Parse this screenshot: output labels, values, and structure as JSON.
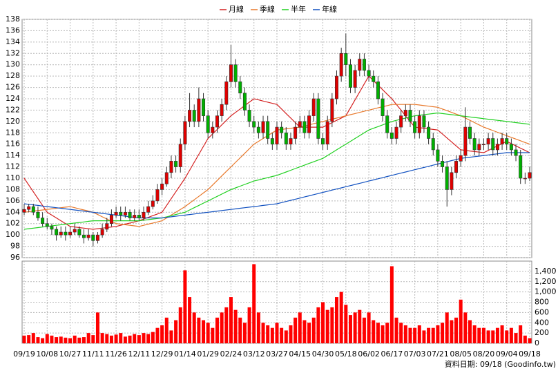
{
  "chart_data": {
    "type": "candlestick",
    "categories": [
      "09/19",
      null,
      null,
      null,
      null,
      "10/08",
      null,
      null,
      null,
      null,
      "10/27",
      null,
      null,
      null,
      null,
      "11/11",
      null,
      null,
      null,
      null,
      "11/26",
      null,
      null,
      null,
      null,
      "12/11",
      null,
      null,
      null,
      null,
      "12/29",
      null,
      null,
      null,
      null,
      "01/14",
      null,
      null,
      null,
      null,
      "01/29",
      null,
      null,
      null,
      null,
      "02/24",
      null,
      null,
      null,
      null,
      "03/12",
      null,
      null,
      null,
      null,
      "03/27",
      null,
      null,
      null,
      null,
      "04/15",
      null,
      null,
      null,
      null,
      "04/30",
      null,
      null,
      null,
      null,
      "05/18",
      null,
      null,
      null,
      null,
      "06/02",
      null,
      null,
      null,
      null,
      "06/17",
      null,
      null,
      null,
      null,
      "07/03",
      null,
      null,
      null,
      null,
      "07/21",
      null,
      null,
      null,
      null,
      "08/05",
      null,
      null,
      null,
      null,
      "08/20",
      null,
      null,
      null,
      null,
      "09/04",
      null,
      null,
      null,
      null,
      "09/18"
    ],
    "open": [
      104,
      104.5,
      105,
      104,
      103,
      102,
      101.5,
      101,
      100,
      100.5,
      100,
      100.5,
      101,
      100,
      99.5,
      100,
      99,
      100,
      101,
      102,
      103.5,
      104,
      103.5,
      104,
      103,
      103.5,
      103,
      104,
      105,
      106,
      108,
      109,
      111,
      113,
      112,
      116,
      120,
      122,
      120,
      124,
      121,
      118,
      119,
      121,
      123,
      127,
      130,
      127,
      125,
      122,
      120,
      119,
      118,
      120,
      117,
      116,
      119,
      118,
      116,
      117,
      119,
      120,
      118,
      121,
      124,
      117,
      116,
      120,
      124,
      128,
      132,
      130,
      126,
      129,
      131,
      129,
      128,
      127,
      124,
      121,
      118,
      117,
      119,
      121,
      122,
      120,
      118,
      121,
      119,
      117,
      115,
      113,
      112,
      108,
      111,
      113,
      114,
      119,
      117,
      115,
      116,
      116,
      117,
      115,
      116,
      117,
      116,
      115,
      114,
      110,
      110
    ],
    "high": [
      105.5,
      105.5,
      105.5,
      105,
      104,
      103,
      102,
      101.5,
      101.5,
      101.5,
      101.5,
      102,
      101.5,
      101,
      101,
      100.5,
      100.5,
      102,
      103,
      104.5,
      105,
      105,
      105,
      104.5,
      104.5,
      104.5,
      105,
      106,
      107,
      109,
      110,
      112,
      114,
      114,
      117,
      121,
      125,
      123,
      126,
      125,
      122,
      120,
      122,
      124,
      128,
      133.5,
      131,
      128,
      126,
      123,
      121,
      120,
      121,
      121,
      118,
      120,
      120,
      119,
      118,
      120,
      121,
      121,
      122,
      125,
      125,
      118,
      121,
      125,
      129,
      133,
      135.5,
      131,
      130,
      132,
      132,
      130,
      129,
      128,
      125,
      122,
      119,
      120,
      122,
      123,
      123,
      121,
      122,
      122,
      120,
      118,
      116,
      114,
      113,
      112,
      114,
      115,
      122.5,
      120,
      118,
      117,
      117,
      118,
      118,
      117,
      118,
      118,
      117,
      116,
      115,
      111,
      112
    ],
    "low": [
      103.5,
      104,
      103.5,
      102.5,
      101.5,
      101,
      100,
      99,
      99.5,
      99,
      99.5,
      100,
      99.5,
      98.5,
      99,
      98,
      98.5,
      99.5,
      100.5,
      101.5,
      103,
      102.5,
      103,
      102.5,
      102.5,
      102.5,
      102.5,
      103.5,
      104.5,
      105.5,
      107,
      108.5,
      110,
      111,
      111,
      115,
      119,
      119,
      119,
      120,
      117,
      117,
      118,
      120,
      122,
      126,
      126,
      124,
      121,
      119,
      118,
      117,
      117,
      116,
      115,
      115,
      117,
      115,
      115,
      116,
      118,
      117,
      117,
      120,
      116,
      115,
      115,
      119,
      123,
      127,
      128,
      125,
      125,
      128,
      128,
      127,
      126,
      123,
      120,
      117,
      116,
      116,
      118,
      120,
      119,
      117,
      117,
      118,
      116,
      114,
      112,
      111,
      105,
      107,
      110,
      112,
      113,
      116,
      114,
      114,
      115,
      115,
      114,
      114,
      115,
      115,
      114,
      113,
      109,
      109,
      109.5
    ],
    "close": [
      104.5,
      105,
      104,
      103,
      102,
      101.5,
      101,
      100,
      100.5,
      100,
      100.5,
      101,
      100,
      99.5,
      100,
      99,
      100,
      101,
      102,
      103.5,
      104,
      103.5,
      104,
      103,
      103.5,
      103,
      104,
      105,
      106,
      108,
      109,
      111,
      113,
      112,
      116,
      120,
      122,
      120,
      124,
      121,
      118,
      119,
      121,
      123,
      127,
      130,
      127,
      125,
      122,
      120,
      119,
      118,
      120,
      117,
      116,
      119,
      118,
      116,
      117,
      119,
      120,
      118,
      121,
      124,
      117,
      116,
      120,
      124,
      128,
      132,
      130,
      126,
      129,
      131,
      129,
      128,
      127,
      124,
      121,
      118,
      117,
      119,
      121,
      122,
      120,
      118,
      121,
      119,
      117,
      115,
      113,
      112,
      108,
      111,
      113,
      114,
      119,
      117,
      115,
      116,
      116,
      117,
      115,
      116,
      117,
      116,
      115,
      114,
      110,
      110,
      111
    ],
    "volume": [
      150,
      160,
      200,
      120,
      100,
      180,
      150,
      120,
      130,
      110,
      100,
      150,
      110,
      120,
      200,
      160,
      600,
      200,
      180,
      150,
      170,
      200,
      130,
      150,
      180,
      160,
      200,
      180,
      220,
      300,
      350,
      500,
      250,
      450,
      700,
      1420,
      900,
      600,
      500,
      450,
      400,
      300,
      500,
      600,
      700,
      900,
      650,
      500,
      400,
      700,
      1540,
      600,
      400,
      350,
      300,
      400,
      300,
      250,
      350,
      500,
      600,
      450,
      400,
      500,
      700,
      800,
      650,
      700,
      900,
      1000,
      750,
      550,
      600,
      650,
      500,
      600,
      450,
      400,
      350,
      400,
      1500,
      500,
      400,
      350,
      300,
      300,
      350,
      250,
      300,
      300,
      350,
      400,
      600,
      450,
      500,
      850,
      600,
      450,
      350,
      300,
      300,
      250,
      250,
      300,
      350,
      250,
      300,
      200,
      350,
      150,
      100
    ],
    "up_color": "#e00000",
    "down_color": "#00b000",
    "volume_color": "#ff0000",
    "series": [
      {
        "name": "月線",
        "color": "#d42020",
        "values": [
          110,
          108.8,
          107.6,
          106.4,
          105.2,
          104,
          103.5,
          103,
          102.5,
          102,
          101.5,
          101.4,
          101.3,
          101.2,
          101.1,
          101,
          101.1,
          101.2,
          101.3,
          101.4,
          101.5,
          101.7,
          101.9,
          102.1,
          102.3,
          102.5,
          102.8,
          103.1,
          103.4,
          103.7,
          104,
          105.2,
          106.4,
          107.6,
          108.8,
          110,
          111.4,
          112.8,
          114.2,
          115.6,
          117,
          117.8,
          118.6,
          119.4,
          120.2,
          121,
          121.6,
          122.2,
          122.8,
          123.4,
          124,
          123.8,
          123.6,
          123.4,
          123.2,
          123,
          122.2,
          121.4,
          120.6,
          119.8,
          119,
          119,
          119,
          119,
          119,
          119,
          119.4,
          119.8,
          120.2,
          120.6,
          121,
          122.4,
          123.8,
          125.2,
          126.6,
          128,
          127.2,
          126.4,
          125.6,
          124.8,
          124,
          123,
          122,
          121,
          120,
          119,
          118.9,
          118.8,
          118.7,
          118.6,
          118.5,
          117.8,
          117.1,
          116.4,
          115.7,
          115,
          114.9,
          114.8,
          114.7,
          114.6,
          114.5,
          114.9,
          115.3,
          115.7,
          116.1,
          116.5,
          116.1,
          115.7,
          115.3,
          114.9,
          114.5
        ]
      },
      {
        "name": "季線",
        "color": "#e8782a",
        "values": [
          104,
          104.1,
          104.2,
          104.3,
          104.4,
          104.5,
          104.6,
          104.7,
          104.8,
          104.9,
          105,
          104.8,
          104.6,
          104.4,
          104.2,
          104,
          103.6,
          103.2,
          102.8,
          102.4,
          102,
          101.9,
          101.8,
          101.7,
          101.6,
          101.5,
          101.7,
          101.9,
          102.1,
          102.3,
          102.5,
          103,
          103.5,
          104,
          104.5,
          105,
          105.6,
          106.2,
          106.8,
          107.4,
          108,
          108.8,
          109.6,
          110.4,
          111.2,
          112,
          112.8,
          113.6,
          114.4,
          115.2,
          116,
          116.5,
          117,
          117.5,
          118,
          118.5,
          118.6,
          118.7,
          118.8,
          118.9,
          119,
          119.2,
          119.4,
          119.6,
          119.8,
          120,
          120.2,
          120.4,
          120.6,
          120.8,
          121,
          121.2,
          121.4,
          121.6,
          121.8,
          122,
          122.2,
          122.4,
          122.6,
          122.8,
          123,
          123,
          123,
          123,
          123,
          123,
          122.9,
          122.8,
          122.7,
          122.6,
          122.5,
          122.2,
          121.9,
          121.6,
          121.3,
          121,
          120.6,
          120.2,
          119.8,
          119.4,
          119,
          118.7,
          118.4,
          118.1,
          117.8,
          117.5,
          117.2,
          116.9,
          116.6,
          116.3,
          116
        ]
      },
      {
        "name": "半年",
        "color": "#20d020",
        "values": [
          101,
          101.1,
          101.2,
          101.3,
          101.4,
          101.5,
          101.6,
          101.7,
          101.8,
          101.9,
          102,
          102.1,
          102.2,
          102.3,
          102.4,
          102.5,
          102.5,
          102.5,
          102.5,
          102.5,
          102.5,
          102.5,
          102.5,
          102.5,
          102.5,
          102.5,
          102.6,
          102.7,
          102.8,
          102.9,
          103,
          103.2,
          103.4,
          103.6,
          103.8,
          104,
          104.4,
          104.8,
          105.2,
          105.6,
          106,
          106.4,
          106.8,
          107.2,
          107.6,
          108,
          108.3,
          108.6,
          108.9,
          109.2,
          109.5,
          109.7,
          109.9,
          110.1,
          110.3,
          110.5,
          110.8,
          111.1,
          111.4,
          111.7,
          112,
          112.3,
          112.6,
          112.9,
          113.2,
          113.5,
          114,
          114.5,
          115,
          115.5,
          116,
          116.5,
          117,
          117.5,
          118,
          118.5,
          118.8,
          119.1,
          119.4,
          119.7,
          120,
          120.2,
          120.4,
          120.6,
          120.8,
          121,
          121.1,
          121.2,
          121.3,
          121.4,
          121.5,
          121.4,
          121.3,
          121.2,
          121.1,
          121,
          120.9,
          120.8,
          120.7,
          120.6,
          120.5,
          120.4,
          120.3,
          120.2,
          120.1,
          120,
          119.9,
          119.8,
          119.7,
          119.6,
          119.5
        ]
      },
      {
        "name": "年線",
        "color": "#1050c0",
        "values": [
          105.5,
          105.4,
          105.3,
          105.2,
          105.1,
          105,
          104.9,
          104.8,
          104.7,
          104.6,
          104.5,
          104.4,
          104.3,
          104.2,
          104.1,
          104,
          103.9,
          103.8,
          103.7,
          103.6,
          103.5,
          103.4,
          103.3,
          103.2,
          103.1,
          103,
          103,
          103,
          103,
          103,
          103,
          103.1,
          103.2,
          103.3,
          103.4,
          103.5,
          103.6,
          103.7,
          103.8,
          103.9,
          104,
          104.1,
          104.2,
          104.3,
          104.4,
          104.5,
          104.6,
          104.7,
          104.8,
          104.9,
          105,
          105.1,
          105.2,
          105.3,
          105.4,
          105.5,
          105.7,
          105.9,
          106.1,
          106.3,
          106.5,
          106.7,
          106.9,
          107.1,
          107.3,
          107.5,
          107.7,
          107.9,
          108.1,
          108.3,
          108.5,
          108.7,
          108.9,
          109.1,
          109.3,
          109.5,
          109.7,
          109.9,
          110.1,
          110.3,
          110.5,
          110.7,
          110.9,
          111.1,
          111.3,
          111.5,
          111.7,
          111.9,
          112.1,
          112.3,
          112.5,
          112.7,
          112.9,
          113.1,
          113.3,
          113.5,
          113.6,
          113.7,
          113.8,
          113.9,
          114,
          114.1,
          114.2,
          114.3,
          114.4,
          114.5,
          114.5,
          114.5,
          114.5,
          114.5,
          114.5
        ]
      }
    ],
    "ylim": [
      96,
      138
    ],
    "yticks": [
      96,
      98,
      100,
      102,
      104,
      106,
      108,
      110,
      112,
      114,
      116,
      118,
      120,
      122,
      124,
      126,
      128,
      130,
      132,
      134,
      136,
      138
    ],
    "volume_ylim": [
      0,
      1600
    ],
    "volume_yticks": [
      0,
      200,
      400,
      600,
      800,
      {
        "value": 1000,
        "label": "1,000"
      },
      {
        "value": 1200,
        "label": "1,200"
      },
      {
        "value": 1400,
        "label": "1,400"
      }
    ],
    "grid": true,
    "footer": "資料日期: 09/18 (Goodinfo.tw)"
  }
}
